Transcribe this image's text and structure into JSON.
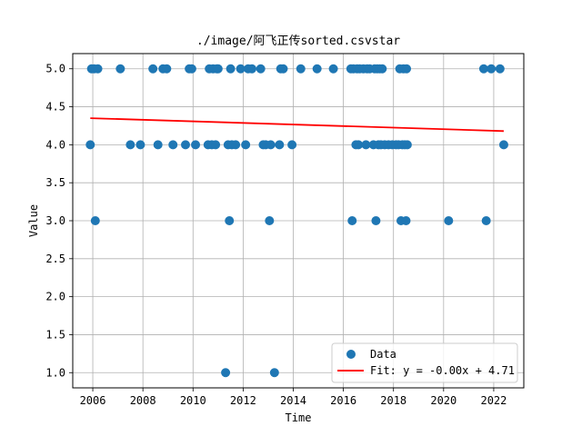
{
  "chart_data": {
    "type": "scatter",
    "title": "./image/阿飞正传sorted.csvstar",
    "xlabel": "Time",
    "ylabel": "Value",
    "xlim": [
      2005.2,
      2023.2
    ],
    "ylim": [
      0.8,
      5.2
    ],
    "xticks": [
      2006,
      2008,
      2010,
      2012,
      2014,
      2016,
      2018,
      2020,
      2022
    ],
    "yticks": [
      1.0,
      1.5,
      2.0,
      2.5,
      3.0,
      3.5,
      4.0,
      4.5,
      5.0
    ],
    "ytick_labels": [
      "1.0",
      "1.5",
      "2.0",
      "2.5",
      "3.0",
      "3.5",
      "4.0",
      "4.5",
      "5.0"
    ],
    "grid": true,
    "legend_position": "lower-right",
    "series": [
      {
        "name": "Data",
        "kind": "scatter",
        "color": "#1f77b4",
        "points": [
          [
            2005.9,
            4
          ],
          [
            2005.95,
            5
          ],
          [
            2006.05,
            5
          ],
          [
            2006.1,
            3
          ],
          [
            2006.2,
            5
          ],
          [
            2007.1,
            5
          ],
          [
            2007.5,
            4
          ],
          [
            2007.9,
            4
          ],
          [
            2008.4,
            5
          ],
          [
            2008.6,
            4
          ],
          [
            2008.8,
            5
          ],
          [
            2008.95,
            5
          ],
          [
            2009.2,
            4
          ],
          [
            2009.7,
            4
          ],
          [
            2009.85,
            5
          ],
          [
            2009.95,
            5
          ],
          [
            2010.1,
            4
          ],
          [
            2010.6,
            4
          ],
          [
            2010.65,
            5
          ],
          [
            2010.75,
            4
          ],
          [
            2010.8,
            5
          ],
          [
            2010.9,
            4
          ],
          [
            2010.95,
            5
          ],
          [
            2011.0,
            5
          ],
          [
            2011.3,
            1
          ],
          [
            2011.4,
            4
          ],
          [
            2011.45,
            3
          ],
          [
            2011.5,
            5
          ],
          [
            2011.55,
            4
          ],
          [
            2011.7,
            4
          ],
          [
            2011.9,
            5
          ],
          [
            2012.1,
            4
          ],
          [
            2012.2,
            5
          ],
          [
            2012.35,
            5
          ],
          [
            2012.7,
            5
          ],
          [
            2012.8,
            4
          ],
          [
            2012.9,
            4
          ],
          [
            2013.05,
            3
          ],
          [
            2013.1,
            4
          ],
          [
            2013.25,
            1
          ],
          [
            2013.45,
            4
          ],
          [
            2013.5,
            5
          ],
          [
            2013.6,
            5
          ],
          [
            2013.95,
            4
          ],
          [
            2014.3,
            5
          ],
          [
            2014.95,
            5
          ],
          [
            2015.6,
            5
          ],
          [
            2016.3,
            5
          ],
          [
            2016.35,
            3
          ],
          [
            2016.4,
            5
          ],
          [
            2016.5,
            4
          ],
          [
            2016.55,
            5
          ],
          [
            2016.6,
            4
          ],
          [
            2016.65,
            5
          ],
          [
            2016.8,
            5
          ],
          [
            2016.9,
            4
          ],
          [
            2016.95,
            5
          ],
          [
            2017.05,
            5
          ],
          [
            2017.2,
            4
          ],
          [
            2017.25,
            5
          ],
          [
            2017.3,
            3
          ],
          [
            2017.35,
            5
          ],
          [
            2017.4,
            4
          ],
          [
            2017.45,
            5
          ],
          [
            2017.5,
            4
          ],
          [
            2017.55,
            5
          ],
          [
            2017.65,
            4
          ],
          [
            2017.8,
            4
          ],
          [
            2017.95,
            4
          ],
          [
            2018.1,
            4
          ],
          [
            2018.2,
            4
          ],
          [
            2018.25,
            5
          ],
          [
            2018.3,
            3
          ],
          [
            2018.35,
            4
          ],
          [
            2018.4,
            5
          ],
          [
            2018.45,
            4
          ],
          [
            2018.5,
            3
          ],
          [
            2018.52,
            5
          ],
          [
            2018.55,
            4
          ],
          [
            2020.2,
            3
          ],
          [
            2021.6,
            5
          ],
          [
            2021.7,
            3
          ],
          [
            2021.9,
            5
          ],
          [
            2022.25,
            5
          ],
          [
            2022.4,
            4
          ]
        ]
      },
      {
        "name": "Fit: y = -0.00x + 4.71",
        "kind": "line",
        "color": "#ff0000",
        "x": [
          2005.9,
          2022.4
        ],
        "y": [
          4.35,
          4.18
        ]
      }
    ]
  }
}
